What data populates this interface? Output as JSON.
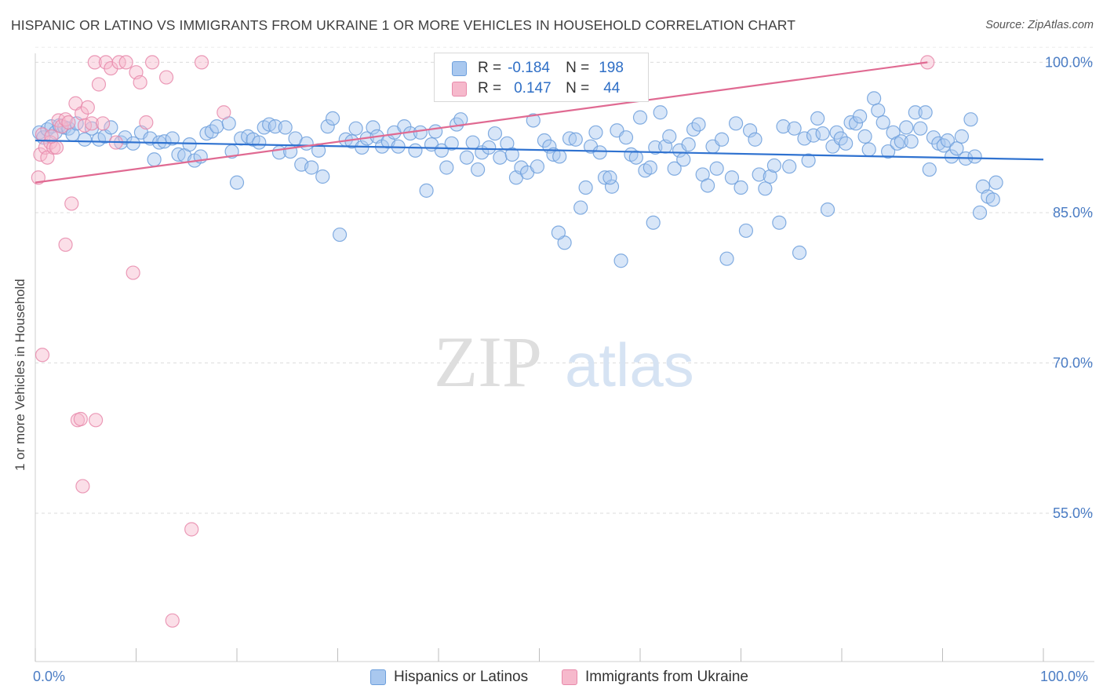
{
  "title": "HISPANIC OR LATINO VS IMMIGRANTS FROM UKRAINE 1 OR MORE VEHICLES IN HOUSEHOLD CORRELATION CHART",
  "source": "Source: ZipAtlas.com",
  "watermark": {
    "zip": "ZIP",
    "atlas": "atlas"
  },
  "colors": {
    "blue_fill": "#a9c8ef",
    "blue_stroke": "#6d9fdc",
    "blue_line": "#2f72d0",
    "pink_fill": "#f6b9cc",
    "pink_stroke": "#e88aab",
    "pink_line": "#e06a92",
    "grid": "#dcdcdc",
    "tick_label": "#4a7cc4"
  },
  "legend": {
    "rows": [
      {
        "r_label": "R =",
        "r_value": "-0.184",
        "n_label": "N =",
        "n_value": "198"
      },
      {
        "r_label": "R =",
        "r_value": "0.147",
        "n_label": "N =",
        "n_value": "44"
      }
    ],
    "placement": "top-center"
  },
  "bottom_legend": [
    "Hispanics or Latinos",
    "Immigrants from Ukraine"
  ],
  "x_axis": {
    "min_label": "0.0%",
    "max_label": "100.0%"
  },
  "chart_data": {
    "type": "scatter",
    "title": "HISPANIC OR LATINO VS IMMIGRANTS FROM UKRAINE 1 OR MORE VEHICLES IN HOUSEHOLD CORRELATION CHART",
    "xlabel": "",
    "ylabel": "1 or more Vehicles in Household",
    "xlim": [
      0,
      100
    ],
    "ylim": [
      40,
      105
    ],
    "y_ticks": [
      55.0,
      70.0,
      85.0,
      100.0
    ],
    "y_tick_labels": [
      "55.0%",
      "70.0%",
      "85.0%",
      "100.0%"
    ],
    "grid": true,
    "series": [
      {
        "name": "Hispanics or Latinos",
        "r": -0.184,
        "n": 198,
        "trend": {
          "x": [
            0,
            100
          ],
          "y": [
            92.2,
            90.3
          ]
        },
        "points": [
          [
            0.4,
            93.0
          ],
          [
            0.8,
            92.5
          ],
          [
            1.2,
            93.3
          ],
          [
            1.6,
            93.6
          ],
          [
            2.0,
            93.0
          ],
          [
            2.4,
            93.7
          ],
          [
            2.9,
            93.5
          ],
          [
            3.3,
            93.4
          ],
          [
            3.7,
            92.8
          ],
          [
            4.1,
            93.9
          ],
          [
            4.9,
            92.3
          ],
          [
            5.6,
            93.4
          ],
          [
            6.3,
            92.3
          ],
          [
            6.9,
            92.6
          ],
          [
            7.5,
            93.5
          ],
          [
            8.5,
            92.0
          ],
          [
            8.9,
            92.5
          ],
          [
            9.7,
            91.9
          ],
          [
            10.5,
            93.0
          ],
          [
            11.4,
            92.4
          ],
          [
            11.8,
            90.3
          ],
          [
            12.3,
            92.0
          ],
          [
            12.8,
            92.1
          ],
          [
            13.6,
            92.4
          ],
          [
            14.2,
            90.8
          ],
          [
            14.8,
            90.7
          ],
          [
            15.3,
            91.8
          ],
          [
            15.8,
            90.2
          ],
          [
            16.4,
            90.6
          ],
          [
            17.0,
            92.9
          ],
          [
            17.5,
            93.1
          ],
          [
            18.0,
            93.6
          ],
          [
            19.2,
            93.9
          ],
          [
            19.5,
            91.1
          ],
          [
            20.0,
            88.0
          ],
          [
            20.4,
            92.4
          ],
          [
            21.1,
            92.6
          ],
          [
            21.6,
            92.3
          ],
          [
            22.2,
            92.0
          ],
          [
            22.7,
            93.5
          ],
          [
            23.2,
            93.8
          ],
          [
            23.8,
            93.6
          ],
          [
            24.2,
            91.0
          ],
          [
            24.8,
            93.5
          ],
          [
            25.3,
            91.1
          ],
          [
            25.8,
            92.4
          ],
          [
            26.4,
            89.8
          ],
          [
            26.9,
            91.9
          ],
          [
            27.4,
            89.5
          ],
          [
            28.1,
            91.2
          ],
          [
            28.5,
            88.6
          ],
          [
            29.0,
            93.6
          ],
          [
            29.5,
            94.4
          ],
          [
            30.2,
            82.8
          ],
          [
            30.8,
            92.3
          ],
          [
            31.4,
            92.1
          ],
          [
            31.8,
            93.4
          ],
          [
            32.4,
            91.5
          ],
          [
            32.9,
            92.4
          ],
          [
            33.5,
            93.5
          ],
          [
            33.9,
            92.6
          ],
          [
            34.4,
            91.6
          ],
          [
            35.0,
            92.1
          ],
          [
            35.6,
            93.0
          ],
          [
            36.0,
            91.6
          ],
          [
            36.6,
            93.6
          ],
          [
            37.2,
            92.9
          ],
          [
            37.7,
            91.2
          ],
          [
            38.2,
            93.0
          ],
          [
            38.8,
            87.2
          ],
          [
            39.3,
            91.8
          ],
          [
            39.7,
            93.1
          ],
          [
            40.3,
            91.2
          ],
          [
            40.8,
            89.5
          ],
          [
            41.3,
            91.9
          ],
          [
            41.8,
            93.8
          ],
          [
            42.2,
            94.3
          ],
          [
            42.8,
            90.5
          ],
          [
            43.4,
            92.0
          ],
          [
            43.9,
            89.3
          ],
          [
            44.3,
            91.0
          ],
          [
            45.0,
            91.5
          ],
          [
            45.6,
            92.9
          ],
          [
            46.1,
            90.5
          ],
          [
            46.8,
            91.9
          ],
          [
            47.3,
            90.8
          ],
          [
            47.7,
            88.5
          ],
          [
            48.2,
            89.5
          ],
          [
            48.8,
            89.0
          ],
          [
            49.4,
            94.2
          ],
          [
            49.8,
            89.6
          ],
          [
            50.5,
            92.2
          ],
          [
            51.0,
            91.6
          ],
          [
            51.4,
            90.8
          ],
          [
            52.0,
            90.6
          ],
          [
            52.5,
            82.0
          ],
          [
            53.0,
            92.4
          ],
          [
            53.6,
            92.3
          ],
          [
            54.1,
            85.5
          ],
          [
            54.6,
            87.5
          ],
          [
            55.1,
            91.6
          ],
          [
            55.6,
            93.0
          ],
          [
            56.0,
            91.0
          ],
          [
            56.5,
            88.5
          ],
          [
            57.2,
            87.6
          ],
          [
            57.7,
            93.2
          ],
          [
            58.1,
            80.2
          ],
          [
            58.6,
            92.5
          ],
          [
            59.1,
            90.8
          ],
          [
            59.6,
            90.5
          ],
          [
            60.0,
            94.5
          ],
          [
            60.5,
            89.2
          ],
          [
            61.0,
            89.5
          ],
          [
            61.5,
            91.5
          ],
          [
            62.0,
            95.0
          ],
          [
            62.5,
            91.6
          ],
          [
            62.9,
            92.6
          ],
          [
            63.4,
            89.4
          ],
          [
            63.9,
            91.2
          ],
          [
            64.3,
            90.3
          ],
          [
            64.8,
            91.8
          ],
          [
            65.3,
            93.3
          ],
          [
            65.8,
            93.8
          ],
          [
            66.2,
            88.8
          ],
          [
            66.7,
            87.7
          ],
          [
            67.2,
            91.6
          ],
          [
            67.6,
            89.4
          ],
          [
            68.1,
            92.3
          ],
          [
            68.6,
            80.4
          ],
          [
            69.1,
            88.5
          ],
          [
            69.5,
            93.9
          ],
          [
            70.0,
            87.5
          ],
          [
            70.5,
            83.2
          ],
          [
            70.9,
            93.2
          ],
          [
            71.4,
            92.3
          ],
          [
            71.8,
            88.8
          ],
          [
            72.4,
            87.4
          ],
          [
            72.9,
            88.6
          ],
          [
            73.3,
            89.7
          ],
          [
            73.8,
            84.0
          ],
          [
            74.2,
            93.6
          ],
          [
            74.8,
            89.6
          ],
          [
            75.3,
            93.4
          ],
          [
            75.8,
            81.0
          ],
          [
            76.3,
            92.4
          ],
          [
            76.7,
            90.2
          ],
          [
            77.2,
            92.7
          ],
          [
            77.6,
            94.4
          ],
          [
            78.1,
            92.9
          ],
          [
            78.6,
            85.3
          ],
          [
            79.1,
            91.6
          ],
          [
            79.5,
            93.0
          ],
          [
            79.9,
            92.4
          ],
          [
            80.4,
            91.9
          ],
          [
            80.9,
            94.0
          ],
          [
            81.4,
            93.9
          ],
          [
            81.8,
            94.6
          ],
          [
            82.3,
            92.6
          ],
          [
            82.7,
            91.3
          ],
          [
            83.2,
            96.4
          ],
          [
            83.6,
            95.2
          ],
          [
            84.1,
            94.0
          ],
          [
            84.6,
            91.1
          ],
          [
            85.1,
            93.0
          ],
          [
            85.5,
            91.9
          ],
          [
            85.9,
            92.1
          ],
          [
            86.4,
            93.5
          ],
          [
            86.9,
            92.1
          ],
          [
            87.3,
            95.0
          ],
          [
            87.8,
            93.4
          ],
          [
            88.3,
            95.0
          ],
          [
            88.7,
            89.3
          ],
          [
            89.1,
            92.5
          ],
          [
            89.6,
            91.9
          ],
          [
            90.1,
            91.7
          ],
          [
            90.5,
            92.2
          ],
          [
            90.9,
            90.6
          ],
          [
            91.4,
            91.4
          ],
          [
            91.9,
            92.6
          ],
          [
            92.3,
            90.4
          ],
          [
            92.8,
            94.3
          ],
          [
            93.2,
            90.6
          ],
          [
            93.7,
            85.0
          ],
          [
            94.0,
            87.6
          ],
          [
            94.5,
            86.6
          ],
          [
            95.0,
            86.3
          ],
          [
            95.3,
            88.0
          ],
          [
            61.3,
            84.0
          ],
          [
            57.0,
            88.5
          ],
          [
            51.9,
            83.0
          ]
        ]
      },
      {
        "name": "Immigrants from Ukraine",
        "r": 0.147,
        "n": 44,
        "trend": {
          "x": [
            0,
            88.5
          ],
          "y": [
            88.0,
            100.0
          ]
        },
        "points": [
          [
            0.3,
            88.5
          ],
          [
            0.5,
            90.8
          ],
          [
            0.7,
            92.8
          ],
          [
            1.0,
            91.5
          ],
          [
            1.2,
            90.5
          ],
          [
            1.5,
            92.0
          ],
          [
            1.8,
            91.5
          ],
          [
            2.1,
            91.5
          ],
          [
            2.3,
            94.2
          ],
          [
            2.6,
            93.6
          ],
          [
            3.0,
            94.3
          ],
          [
            3.3,
            94.0
          ],
          [
            3.6,
            85.9
          ],
          [
            3.0,
            81.8
          ],
          [
            4.0,
            95.9
          ],
          [
            4.6,
            94.9
          ],
          [
            4.9,
            93.7
          ],
          [
            5.2,
            95.5
          ],
          [
            5.6,
            93.9
          ],
          [
            5.9,
            100.0
          ],
          [
            6.3,
            97.8
          ],
          [
            6.7,
            93.9
          ],
          [
            7.0,
            100.0
          ],
          [
            7.5,
            99.4
          ],
          [
            8.0,
            92.0
          ],
          [
            8.3,
            100.0
          ],
          [
            9.0,
            100.0
          ],
          [
            9.7,
            79.0
          ],
          [
            10.0,
            99.0
          ],
          [
            10.4,
            98.0
          ],
          [
            11.0,
            94.0
          ],
          [
            11.6,
            100.0
          ],
          [
            13.0,
            98.5
          ],
          [
            16.5,
            100.0
          ],
          [
            18.7,
            95.0
          ],
          [
            0.7,
            70.8
          ],
          [
            4.2,
            64.3
          ],
          [
            4.5,
            64.4
          ],
          [
            6.0,
            64.3
          ],
          [
            4.7,
            57.7
          ],
          [
            15.5,
            53.4
          ],
          [
            13.6,
            44.3
          ],
          [
            1.6,
            92.6
          ],
          [
            88.5,
            100.0
          ]
        ]
      }
    ]
  }
}
